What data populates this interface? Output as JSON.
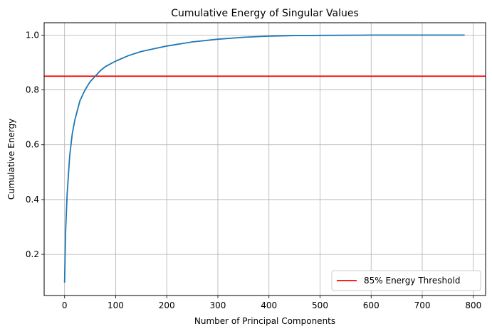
{
  "chart_data": {
    "type": "line",
    "title": "Cumulative Energy of Singular Values",
    "xlabel": "Number of Principal Components",
    "ylabel": "Cumulative Energy",
    "xlim": [
      -40,
      824
    ],
    "ylim": [
      0.05,
      1.045
    ],
    "xticks": [
      0,
      100,
      200,
      300,
      400,
      500,
      600,
      700,
      800
    ],
    "yticks": [
      0.2,
      0.4,
      0.6,
      0.8,
      1.0
    ],
    "xtick_labels": [
      "0",
      "100",
      "200",
      "300",
      "400",
      "500",
      "600",
      "700",
      "800"
    ],
    "ytick_labels": [
      "0.2",
      "0.4",
      "0.6",
      "0.8",
      "1.0"
    ],
    "grid": true,
    "legend_position": "lower-right",
    "series": [
      {
        "color": "#1f77b4",
        "x": [
          0,
          2,
          5,
          10,
          15,
          20,
          30,
          40,
          50,
          60,
          70,
          80,
          100,
          125,
          150,
          200,
          250,
          300,
          350,
          400,
          450,
          500,
          600,
          700,
          783
        ],
        "y": [
          0.097,
          0.28,
          0.42,
          0.56,
          0.64,
          0.69,
          0.76,
          0.8,
          0.83,
          0.85,
          0.87,
          0.885,
          0.905,
          0.925,
          0.94,
          0.96,
          0.975,
          0.985,
          0.992,
          0.996,
          0.998,
          0.999,
          1.0,
          1.0,
          1.0
        ]
      }
    ],
    "threshold": {
      "name": "85% Energy Threshold",
      "y": 0.85,
      "color": "#ff0000"
    }
  }
}
